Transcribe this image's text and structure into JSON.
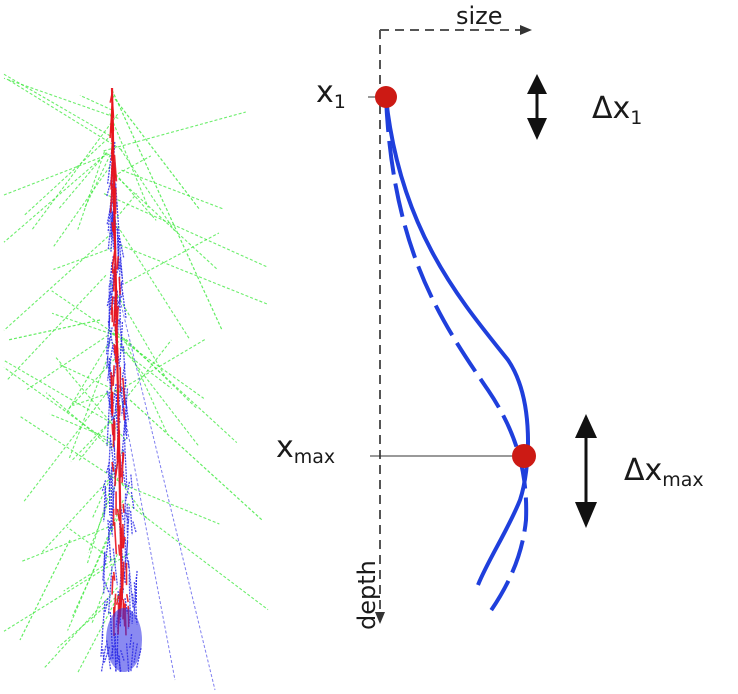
{
  "axes": {
    "x_label": "size",
    "y_label": "depth"
  },
  "markers": [
    {
      "label": "x",
      "subscript": "1",
      "delta_label": "Δx",
      "delta_subscript": "1"
    },
    {
      "label": "x",
      "subscript": "max",
      "delta_label": "Δx",
      "delta_subscript": "max"
    }
  ],
  "colors": {
    "profile_line": "#1f3fdc",
    "marker_dot": "#cc1a14",
    "shower_core": "#e8141e",
    "shower_em": "#2a2ae6",
    "shower_tracks": "#3be83b",
    "axis": "#555555"
  }
}
